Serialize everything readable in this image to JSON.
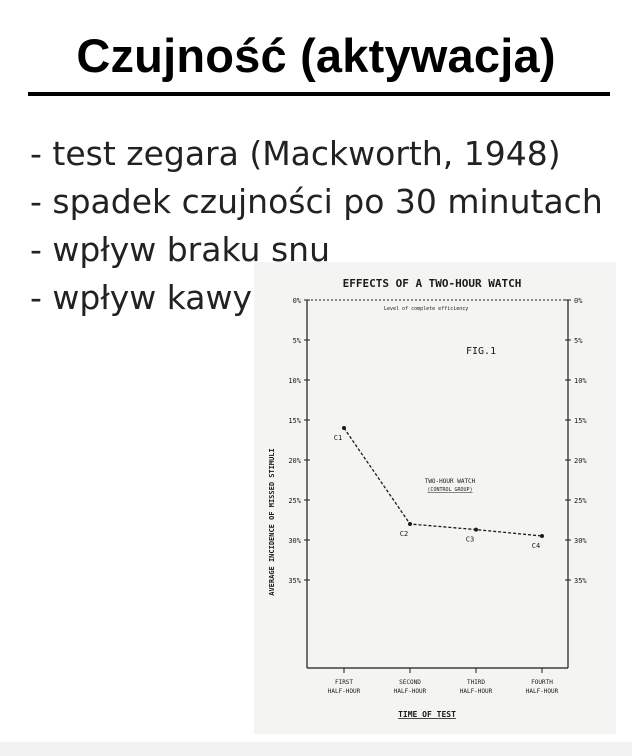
{
  "slide": {
    "title": "Czujność (aktywacja)",
    "bullets": [
      "- test zegara (Mackworth, 1948)",
      "- spadek czujności po 30 minutach",
      "- wpływ braku snu",
      "- wpływ kawy"
    ]
  },
  "chart_data": {
    "type": "line",
    "title": "EFFECTS OF A TWO-HOUR WATCH",
    "fig_label": "FIG.1",
    "reference_line_label": "Level of complete efficiency",
    "ylabel": "AVERAGE INCIDENCE OF MISSED STIMULI",
    "xlabel": "TIME OF TEST",
    "categories": [
      "FIRST HALF-HOUR",
      "SECOND HALF-HOUR",
      "THIRD HALF-HOUR",
      "FOURTH HALF-HOUR"
    ],
    "categories_line1": [
      "FIRST",
      "SECOND",
      "THIRD",
      "FOURTH"
    ],
    "categories_line2": [
      "HALF-HOUR",
      "HALF-HOUR",
      "HALF-HOUR",
      "HALF-HOUR"
    ],
    "series": [
      {
        "name": "TWO-HOUR WATCH",
        "subtitle": "(CONTROL GROUP)",
        "point_labels": [
          "C1",
          "C2",
          "C3",
          "C4"
        ],
        "values": [
          16,
          28,
          28.7,
          29.5
        ]
      }
    ],
    "y_ticks_left": [
      "0%",
      "5%",
      "10%",
      "15%",
      "20%",
      "25%",
      "30%",
      "35%"
    ],
    "y_ticks_right": [
      "0%",
      "5%",
      "10%",
      "15%",
      "20%",
      "25%",
      "30%",
      "35%"
    ],
    "ylim": [
      0,
      40
    ],
    "y_inverted": true,
    "grid": false,
    "colors": {
      "ink": "#1a1a1a",
      "paper": "#f4f4f2"
    }
  }
}
